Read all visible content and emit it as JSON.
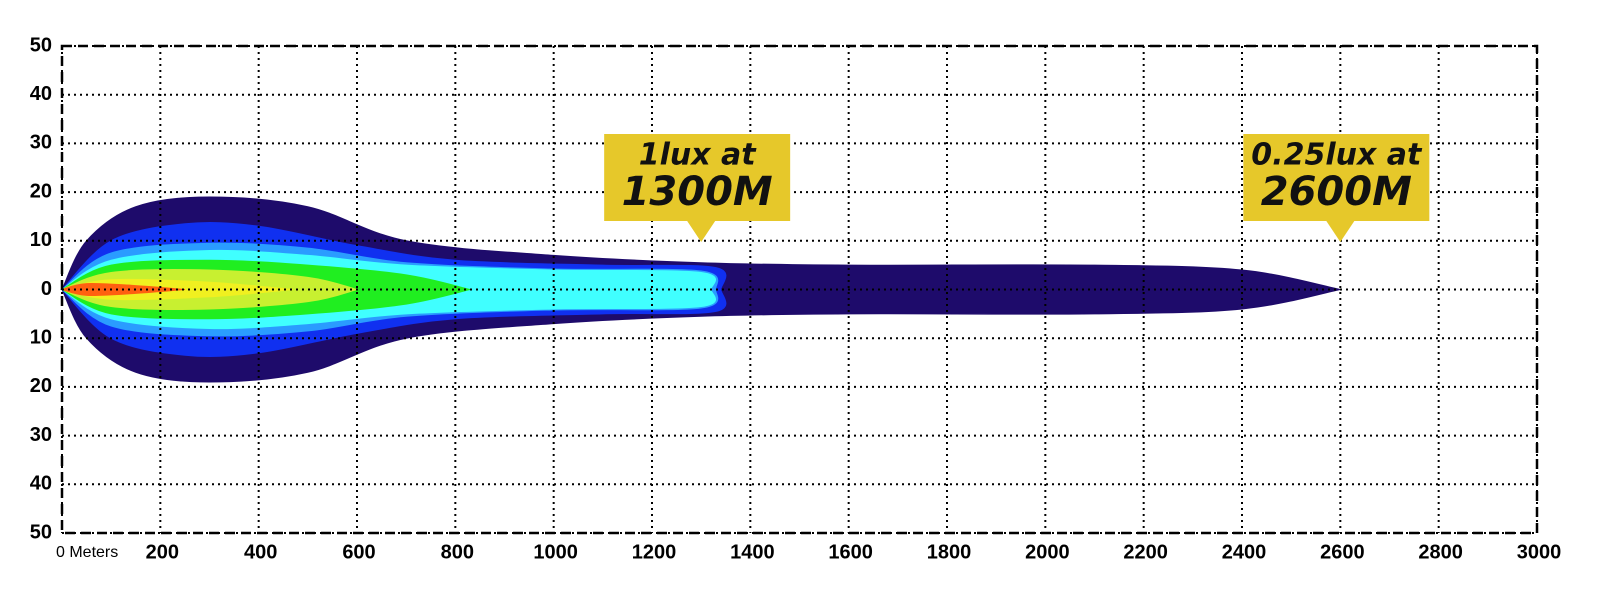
{
  "chart_data": {
    "type": "area",
    "xlim": [
      0,
      3000
    ],
    "ylim": [
      -50,
      50
    ],
    "grid": true,
    "xticks": [
      {
        "value": 0,
        "label": "0 Meters"
      },
      200,
      400,
      600,
      800,
      {
        "value": 1000,
        "label": "1000",
        "color": "#e8c32b"
      },
      1200,
      1400,
      1600,
      1800,
      2000,
      2200,
      2400,
      2600,
      2800,
      {
        "value": 3000,
        "label": "3000",
        "color": "#e8c32b"
      }
    ],
    "yticks": [
      50,
      40,
      30,
      20,
      10,
      0,
      {
        "value": -10,
        "label": "10"
      },
      {
        "value": -20,
        "label": "20"
      },
      {
        "value": -30,
        "label": "30"
      },
      {
        "value": -40,
        "label": "40"
      },
      {
        "value": -50,
        "label": "50"
      }
    ],
    "symmetric": true,
    "series": [
      {
        "color": "#1e0b6b",
        "x": [
          0,
          50,
          150,
          300,
          500,
          700,
          1000,
          1300,
          1600,
          2100,
          2400,
          2600
        ],
        "values": [
          0,
          10,
          17,
          19,
          17,
          10,
          7,
          5.5,
          5,
          5,
          4,
          0
        ]
      },
      {
        "color": "#1030f0",
        "x": [
          0,
          100,
          250,
          400,
          600,
          800,
          1100,
          1330,
          1340
        ],
        "values": [
          0,
          10,
          13.5,
          13,
          9,
          6,
          5,
          4.5,
          0
        ]
      },
      {
        "color": "#2a9cff",
        "x": [
          0,
          100,
          300,
          500,
          700,
          1000,
          1300,
          1330
        ],
        "values": [
          0,
          7.5,
          9.5,
          8.5,
          5.5,
          4.2,
          3.8,
          0
        ]
      },
      {
        "color": "#40ffff",
        "x": [
          0,
          100,
          300,
          500,
          700,
          1000,
          1300,
          1320
        ],
        "values": [
          0,
          6,
          8,
          7,
          5,
          4,
          3.5,
          0
        ]
      },
      {
        "color": "#20ee20",
        "x": [
          0,
          100,
          300,
          500,
          700,
          830
        ],
        "values": [
          0,
          5,
          6,
          5,
          3,
          0
        ]
      },
      {
        "color": "#c8f030",
        "x": [
          0,
          100,
          300,
          500,
          600
        ],
        "values": [
          0,
          3.5,
          4,
          2.5,
          0
        ]
      },
      {
        "color": "#f0f020",
        "x": [
          0,
          100,
          300,
          470
        ],
        "values": [
          0,
          2,
          1.5,
          0
        ]
      },
      {
        "color": "#ff6010",
        "x": [
          0,
          50,
          150,
          250
        ],
        "values": [
          0,
          1.2,
          0.8,
          0
        ]
      }
    ],
    "annotation_color": "#e6c82a",
    "annotations": [
      {
        "x": 1300,
        "line1": "1lux at",
        "line2": "1300M"
      },
      {
        "x": 2600,
        "line1": "0.25lux at",
        "line2": "2600M"
      }
    ]
  }
}
